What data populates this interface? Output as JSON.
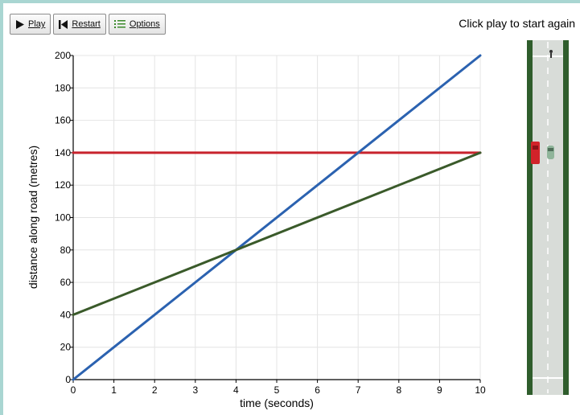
{
  "toolbar": {
    "play_label": "Play",
    "restart_label": "Restart",
    "options_label": "Options"
  },
  "status_text": "Click play to start again",
  "chart_data": {
    "type": "line",
    "xlabel": "time (seconds)",
    "ylabel": "distance along road (metres)",
    "xlim": [
      0,
      10
    ],
    "ylim": [
      0,
      200
    ],
    "x_ticks": [
      0,
      1,
      2,
      3,
      4,
      5,
      6,
      7,
      8,
      9,
      10
    ],
    "y_ticks": [
      0,
      20,
      40,
      60,
      80,
      100,
      120,
      140,
      160,
      180,
      200
    ],
    "grid": true,
    "series": [
      {
        "color": "#c8232c",
        "x": [
          0,
          10
        ],
        "y": [
          140,
          140
        ]
      },
      {
        "color": "#2b62b0",
        "x": [
          0,
          10
        ],
        "y": [
          0,
          200
        ]
      },
      {
        "color": "#3a5a2a",
        "x": [
          0,
          10
        ],
        "y": [
          40,
          140
        ]
      }
    ]
  },
  "road": {
    "icons": [
      "red-car-icon",
      "green-car-icon",
      "pedestrian-icon"
    ],
    "colors": {
      "verge": "#2f5d2c",
      "asphalt": "#d8dcd8",
      "red_car": "#d1232a",
      "green_car": "#8fb59a"
    }
  }
}
